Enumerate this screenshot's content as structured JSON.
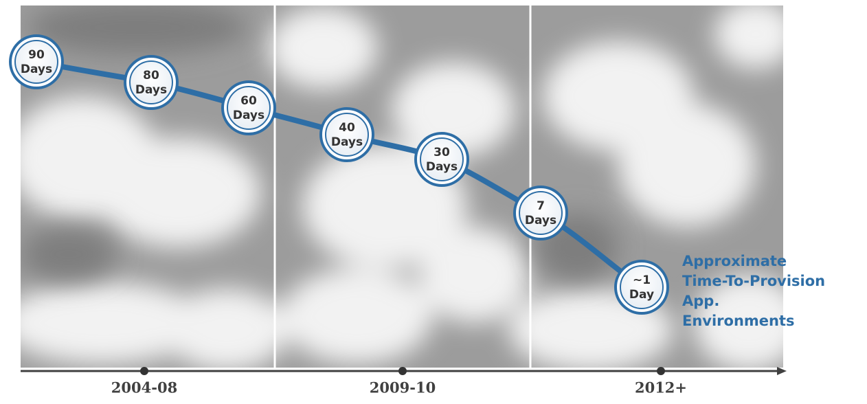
{
  "nodes": [
    {
      "number": "90",
      "unit": "Days"
    },
    {
      "number": "80",
      "unit": "Days"
    },
    {
      "number": "60",
      "unit": "Days"
    },
    {
      "number": "40",
      "unit": "Days"
    },
    {
      "number": "30",
      "unit": "Days"
    },
    {
      "number": "7",
      "unit": "Days"
    },
    {
      "number": "~1",
      "unit": "Day"
    }
  ],
  "periods": [
    "2004-08",
    "2009-10",
    "2012+"
  ],
  "caption": [
    "Approximate",
    "Time-To-Provision",
    "App.",
    "Environments"
  ]
}
